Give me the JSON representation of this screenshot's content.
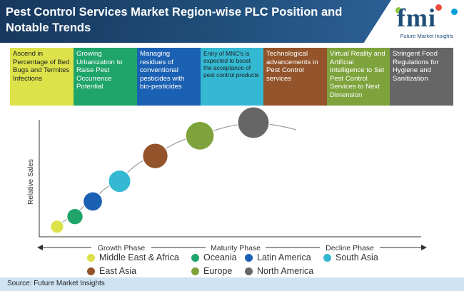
{
  "header": {
    "title": "Pest Control Services Market Region-wise PLC Position and Notable Trends",
    "logo_text": "fmi",
    "logo_subtext": "Future Market Insights"
  },
  "trends": [
    {
      "text": "Ascend in Percentage of Bed Bugs and Termites Infections",
      "color": "#dde24a",
      "text_color": "#1f1f1f"
    },
    {
      "text": "Growing Urbanization to Raise Pest Occurrence Potential",
      "color": "#1fa56a",
      "text_color": "#ffffff"
    },
    {
      "text": "Managing residues of conventional pesticides with bio-pesticides",
      "color": "#1b61b3",
      "text_color": "#ffffff"
    },
    {
      "text": "Entry of MNC's is expected to boost the acceptance of pest control products",
      "color": "#35b8d2",
      "text_color": "#1f1f1f"
    },
    {
      "text": "Technological advancements in Pest Control services",
      "color": "#93542b",
      "text_color": "#ffffff"
    },
    {
      "text": "Virtual Reality and Artificial Intelligence to Set Pest Control Services to Next Dimension",
      "color": "#7ea33c",
      "text_color": "#ffffff"
    },
    {
      "text": "Stringent Food Regulations for Hygiene and Sanitization",
      "color": "#666666",
      "text_color": "#ffffff"
    }
  ],
  "chart_data": {
    "type": "scatter",
    "ylabel": "Relative Sales",
    "phases": [
      "Growth Phase",
      "Maturity Phase",
      "Decline Phase"
    ],
    "points": [
      {
        "name": "Middle East & Africa",
        "x": 1.0,
        "y": 1.0,
        "size": 1,
        "color": "#dde24a"
      },
      {
        "name": "Oceania",
        "x": 2.0,
        "y": 2.0,
        "size": 1.5,
        "color": "#1fa56a"
      },
      {
        "name": "Latin America",
        "x": 3.0,
        "y": 3.5,
        "size": 2,
        "color": "#1b61b3"
      },
      {
        "name": "South Asia",
        "x": 4.5,
        "y": 5.5,
        "size": 2.5,
        "color": "#35b8d2"
      },
      {
        "name": "East Asia",
        "x": 6.5,
        "y": 8.0,
        "size": 3,
        "color": "#93542b"
      },
      {
        "name": "Europe",
        "x": 9.0,
        "y": 10.0,
        "size": 3.5,
        "color": "#7ea33c"
      },
      {
        "name": "North America",
        "x": 12.0,
        "y": 11.3,
        "size": 4,
        "color": "#666666"
      }
    ],
    "legend": [
      {
        "label": "Middle East & Africa",
        "color": "#dde24a"
      },
      {
        "label": "Oceania",
        "color": "#1fa56a"
      },
      {
        "label": "Latin America",
        "color": "#1b61b3"
      },
      {
        "label": "South Asia",
        "color": "#35b8d2"
      },
      {
        "label": "East Asia",
        "color": "#93542b"
      },
      {
        "label": "Europe",
        "color": "#7ea33c"
      },
      {
        "label": "North America",
        "color": "#666666"
      }
    ]
  },
  "footer": {
    "source": "Source: Future Market Insights"
  }
}
